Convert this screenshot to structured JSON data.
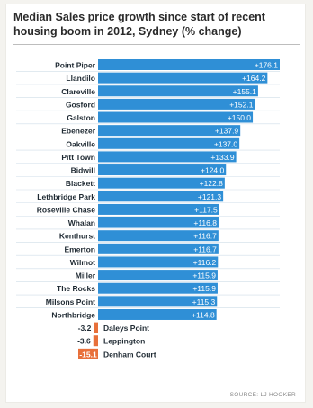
{
  "chart_data": {
    "type": "bar",
    "orientation": "horizontal",
    "title_lines": [
      "Median Sales price growth since start of recent",
      "housing boom in 2012, Sydney (% change)"
    ],
    "categories": [
      "Point Piper",
      "Llandilo",
      "Clareville",
      "Gosford",
      "Galston",
      "Ebenezer",
      "Oakville",
      "Pitt Town",
      "Bidwill",
      "Blackett",
      "Lethbridge Park",
      "Roseville Chase",
      "Whalan",
      "Kenthurst",
      "Emerton",
      "Wilmot",
      "Miller",
      "The Rocks",
      "Milsons Point",
      "Northbridge",
      "Daleys Point",
      "Leppington",
      "Denham Court"
    ],
    "values": [
      176.1,
      164.2,
      155.1,
      152.1,
      150.0,
      137.9,
      137.0,
      133.9,
      124.0,
      122.8,
      121.3,
      117.5,
      116.8,
      116.7,
      116.7,
      116.2,
      115.9,
      115.9,
      115.3,
      114.8,
      -3.2,
      -3.6,
      -15.1
    ],
    "labels": [
      "+176.1",
      "+164.2",
      "+155.1",
      "+152.1",
      "+150.0",
      "+137.9",
      "+137.0",
      "+133.9",
      "+124.0",
      "+122.8",
      "+121.3",
      "+117.5",
      "+116.8",
      "+116.7",
      "+116.7",
      "+116.2",
      "+115.9",
      "+115.9",
      "+115.3",
      "+114.8",
      "-3.2",
      "-3.6",
      "-15.1"
    ],
    "colors": {
      "positive": "#2f8fd6",
      "negative": "#e8703a",
      "divider": "#cfdde8"
    },
    "source": "SOURCE: LJ HOOKER"
  }
}
